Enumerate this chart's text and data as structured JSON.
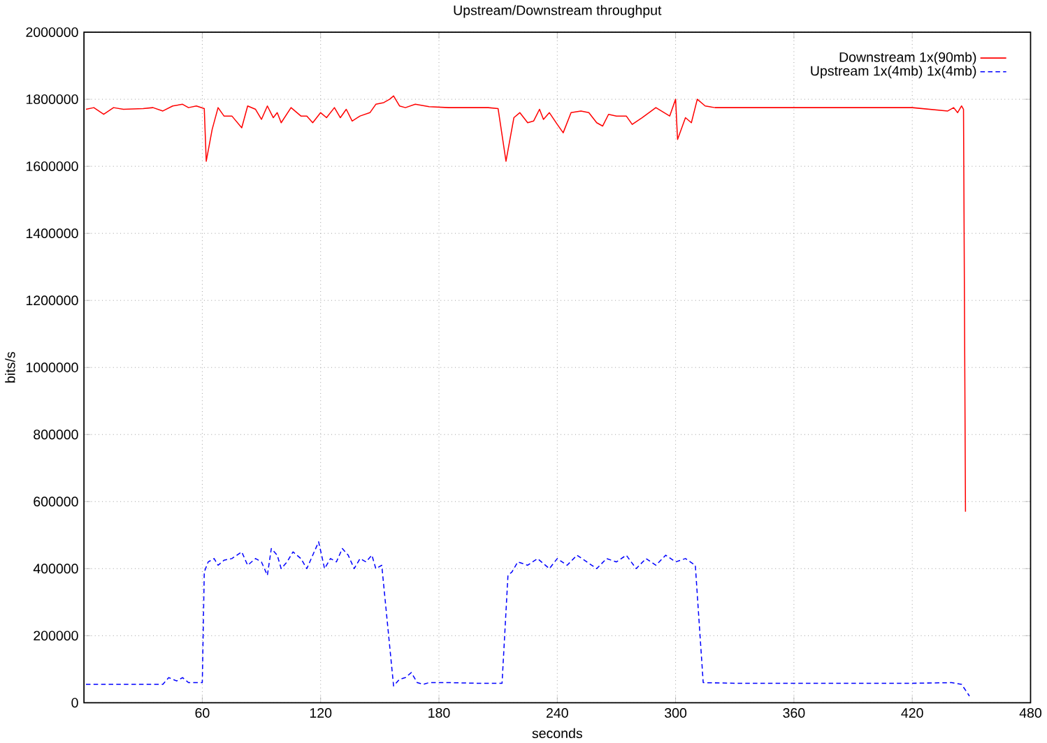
{
  "chart_data": {
    "type": "line",
    "title": "Upstream/Downstream throughput",
    "xlabel": "seconds",
    "ylabel": "bits/s",
    "xlim": [
      0,
      480
    ],
    "ylim": [
      0,
      2000000
    ],
    "xticks": [
      60,
      120,
      180,
      240,
      300,
      360,
      420,
      480
    ],
    "yticks": [
      0,
      200000,
      400000,
      600000,
      800000,
      1000000,
      1200000,
      1400000,
      1600000,
      1800000,
      2000000
    ],
    "grid": true,
    "legend": "top right",
    "series": [
      {
        "name": "Downstream 1x(90mb)",
        "color": "#ff0000",
        "line_style": "solid",
        "x": [
          1,
          5,
          10,
          15,
          20,
          30,
          35,
          40,
          45,
          50,
          53,
          57,
          61,
          62,
          65,
          68,
          71,
          75,
          80,
          83,
          87,
          90,
          93,
          96,
          98,
          100,
          105,
          110,
          113,
          116,
          120,
          123,
          127,
          130,
          133,
          136,
          140,
          145,
          148,
          152,
          155,
          157,
          160,
          163,
          168,
          175,
          185,
          195,
          205,
          210,
          214,
          218,
          221,
          225,
          228,
          231,
          233,
          236,
          240,
          243,
          247,
          252,
          256,
          260,
          263,
          266,
          270,
          275,
          278,
          283,
          290,
          297,
          300,
          301,
          305,
          308,
          311,
          315,
          320,
          340,
          360,
          380,
          400,
          420,
          438,
          441,
          443,
          445,
          446,
          447
        ],
        "values": [
          1770000,
          1775000,
          1755000,
          1775000,
          1770000,
          1772000,
          1775000,
          1765000,
          1780000,
          1785000,
          1775000,
          1780000,
          1772000,
          1615000,
          1710000,
          1775000,
          1750000,
          1750000,
          1715000,
          1780000,
          1770000,
          1740000,
          1780000,
          1745000,
          1760000,
          1730000,
          1775000,
          1750000,
          1750000,
          1730000,
          1760000,
          1745000,
          1775000,
          1745000,
          1770000,
          1735000,
          1750000,
          1760000,
          1785000,
          1790000,
          1800000,
          1810000,
          1780000,
          1775000,
          1785000,
          1778000,
          1775000,
          1775000,
          1775000,
          1772000,
          1615000,
          1745000,
          1760000,
          1730000,
          1735000,
          1770000,
          1740000,
          1760000,
          1725000,
          1700000,
          1760000,
          1765000,
          1760000,
          1730000,
          1720000,
          1755000,
          1750000,
          1750000,
          1725000,
          1745000,
          1775000,
          1750000,
          1800000,
          1680000,
          1745000,
          1730000,
          1800000,
          1780000,
          1775000,
          1775000,
          1775000,
          1775000,
          1775000,
          1775000,
          1765000,
          1775000,
          1760000,
          1780000,
          1770000,
          570000
        ]
      },
      {
        "name": "Upstream 1x(4mb) 1x(4mb)",
        "color": "#0000ff",
        "line_style": "dashed",
        "x": [
          1,
          10,
          20,
          30,
          40,
          43,
          47,
          50,
          53,
          57,
          60,
          61,
          63,
          66,
          68,
          71,
          75,
          80,
          83,
          87,
          90,
          93,
          95,
          98,
          100,
          103,
          106,
          110,
          113,
          116,
          119,
          122,
          125,
          128,
          131,
          134,
          137,
          140,
          143,
          146,
          148,
          151,
          157,
          160,
          163,
          166,
          169,
          172,
          175,
          185,
          200,
          212,
          215,
          217,
          220,
          225,
          230,
          236,
          240,
          245,
          250,
          255,
          260,
          265,
          270,
          275,
          280,
          285,
          290,
          295,
          300,
          305,
          310,
          314,
          330,
          360,
          390,
          420,
          440,
          445,
          449
        ],
        "values": [
          55000,
          55000,
          55000,
          55000,
          55000,
          75000,
          65000,
          75000,
          60000,
          60000,
          60000,
          390000,
          420000,
          430000,
          410000,
          425000,
          430000,
          450000,
          410000,
          430000,
          420000,
          380000,
          460000,
          440000,
          400000,
          420000,
          450000,
          430000,
          400000,
          440000,
          480000,
          400000,
          430000,
          420000,
          460000,
          440000,
          400000,
          430000,
          420000,
          440000,
          400000,
          410000,
          50000,
          70000,
          75000,
          90000,
          60000,
          55000,
          60000,
          60000,
          58000,
          58000,
          380000,
          390000,
          420000,
          410000,
          430000,
          400000,
          430000,
          410000,
          440000,
          420000,
          400000,
          430000,
          420000,
          440000,
          400000,
          430000,
          410000,
          440000,
          420000,
          430000,
          410000,
          60000,
          58000,
          58000,
          58000,
          58000,
          60000,
          55000,
          20000
        ]
      }
    ]
  }
}
